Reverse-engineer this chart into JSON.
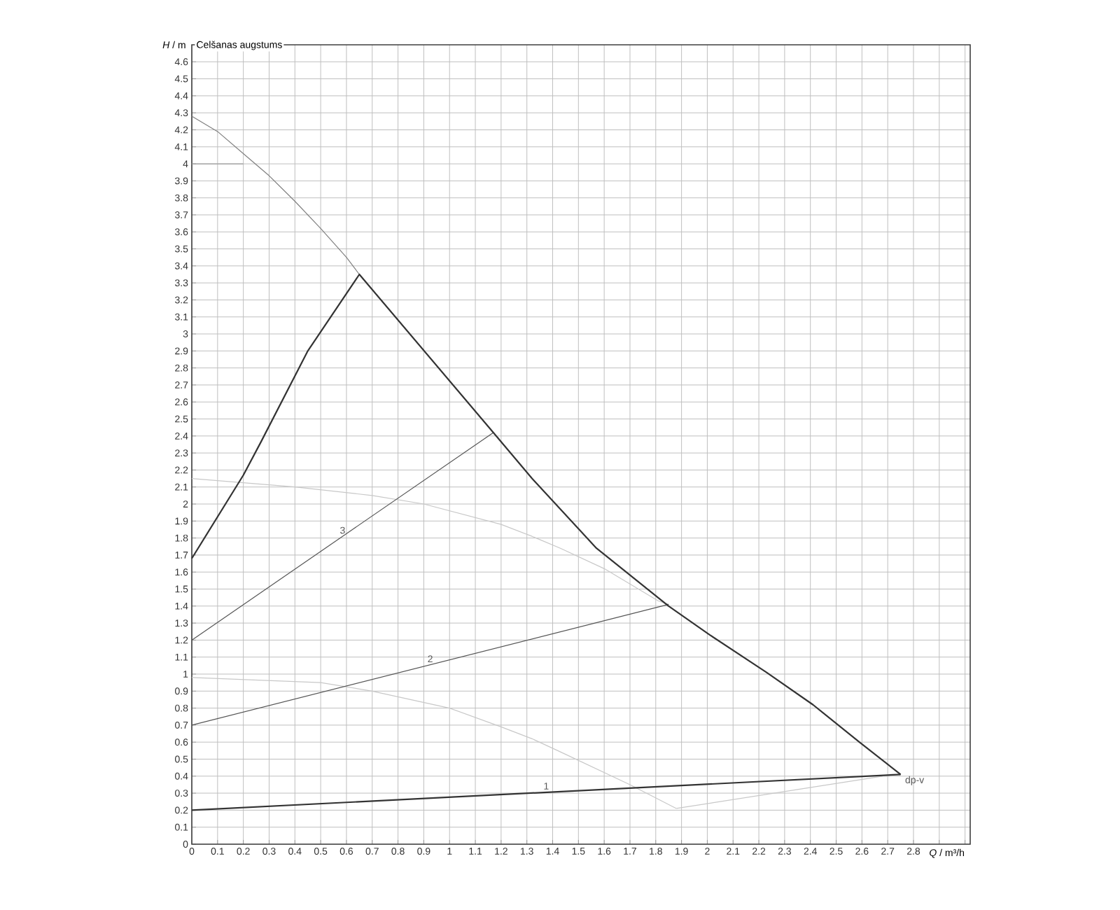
{
  "chart_data": {
    "type": "line",
    "title": "Celšanas augstums",
    "xlabel": "*Q* / m³/h",
    "ylabel": "*H* / m",
    "xlim": [
      0,
      3.02
    ],
    "ylim": [
      0,
      4.7
    ],
    "xticks": [
      0,
      0.1,
      0.2,
      0.3,
      0.4,
      0.5,
      0.6,
      0.7,
      0.8,
      0.9,
      1,
      1.1,
      1.2,
      1.3,
      1.4,
      1.5,
      1.6,
      1.7,
      1.8,
      1.9,
      2,
      2.1,
      2.2,
      2.3,
      2.4,
      2.5,
      2.6,
      2.7,
      2.8,
      {
        "value": 2.9,
        "label": null
      },
      {
        "value": 3.0,
        "label": null
      }
    ],
    "yticks": [
      0,
      0.1,
      0.2,
      0.3,
      0.4,
      0.5,
      0.6,
      0.7,
      0.8,
      0.9,
      1,
      1.1,
      1.2,
      1.3,
      1.4,
      1.5,
      1.6,
      1.7,
      1.8,
      1.9,
      2,
      2.1,
      2.2,
      2.3,
      2.4,
      2.5,
      2.6,
      2.7,
      2.8,
      2.9,
      3,
      3.1,
      3.2,
      3.3,
      3.4,
      3.5,
      3.6,
      3.7,
      3.8,
      3.9,
      4,
      4.1,
      4.2,
      4.3,
      4.4,
      4.5,
      4.6
    ],
    "grid": true,
    "line_style": "solid",
    "marker": "none",
    "series": [
      {
        "color": "#808080",
        "x": [
          0,
          0.1,
          0.2,
          0.3,
          0.4,
          0.5,
          0.6,
          0.65
        ],
        "values": [
          4.28,
          4.19,
          4.06,
          3.93,
          3.78,
          3.62,
          3.45,
          3.35
        ]
      },
      {
        "color": "#a0a0a0",
        "x": [
          0,
          0.2
        ],
        "values": [
          4.0,
          4.0
        ]
      },
      {
        "color": "#c8c8c8",
        "x": [
          0,
          0.4,
          0.7,
          0.9,
          1.2,
          1.32,
          1.43,
          1.6,
          1.81,
          1.85
        ],
        "values": [
          2.15,
          2.1,
          2.05,
          2.0,
          1.88,
          1.81,
          1.74,
          1.62,
          1.43,
          1.41
        ]
      },
      {
        "color": "#c8c8c8",
        "x": [
          0,
          0.5,
          0.7,
          1.0,
          1.2,
          1.32,
          1.42,
          1.7,
          1.88
        ],
        "values": [
          0.98,
          0.95,
          0.9,
          0.8,
          0.69,
          0.62,
          0.55,
          0.35,
          0.21
        ]
      },
      {
        "color": "#c8c8c8",
        "x": [
          1.88,
          2.68
        ],
        "values": [
          0.21,
          0.4
        ]
      },
      {
        "name": "3",
        "color": "#555555",
        "x": [
          0,
          1.17
        ],
        "values": [
          1.2,
          2.42
        ]
      },
      {
        "name": "2",
        "color": "#555555",
        "x": [
          0,
          1.85
        ],
        "values": [
          0.7,
          1.41
        ]
      },
      {
        "name": "dp-v",
        "color": "#333333",
        "x": [
          0,
          0.2,
          0.27,
          0.45,
          0.65,
          1.17,
          1.32,
          1.57,
          1.85,
          2.01,
          2.23,
          2.41,
          2.59,
          2.75
        ],
        "values": [
          1.68,
          2.17,
          2.37,
          2.9,
          3.35,
          2.42,
          2.15,
          1.74,
          1.4,
          1.23,
          1.01,
          0.82,
          0.6,
          0.41
        ]
      },
      {
        "name": "1",
        "color": "#333333",
        "x": [
          0,
          2.75
        ],
        "values": [
          0.2,
          0.41
        ]
      }
    ]
  }
}
